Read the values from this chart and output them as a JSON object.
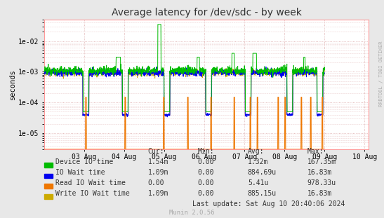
{
  "title": "Average latency for /dev/sdc - by week",
  "ylabel": "seconds",
  "right_label": "RRDTOOL / TOBI OETIKER",
  "bg_color": "#e8e8e8",
  "plot_bg_color": "#ffffff",
  "dotted_grid_color": "#ddaaaa",
  "frame_color": "#ff9999",
  "ylim_min": 3e-06,
  "ylim_max": 0.05,
  "xlim_min": 0,
  "xlim_max": 700000,
  "ytick_vals": [
    1e-05,
    0.0001,
    0.001,
    0.01
  ],
  "ytick_labels": [
    "1e-05",
    "1e-04",
    "1e-03",
    "1e-02"
  ],
  "xtick_positions": [
    86400,
    172800,
    259200,
    345600,
    432000,
    518400,
    604800,
    691200
  ],
  "xtick_labels": [
    "03 Aug",
    "04 Aug",
    "05 Aug",
    "06 Aug",
    "07 Aug",
    "08 Aug",
    "09 Aug",
    "10 Aug"
  ],
  "series_colors": {
    "device_io": "#00bb00",
    "io_wait": "#0000ee",
    "read_wait": "#ee7700",
    "write_wait": "#ccaa00"
  },
  "legend_items": [
    {
      "label": "Device IO time",
      "color": "#00bb00"
    },
    {
      "label": "IO Wait time",
      "color": "#0000ee"
    },
    {
      "label": "Read IO Wait time",
      "color": "#ee7700"
    },
    {
      "label": "Write IO Wait time",
      "color": "#ccaa00"
    }
  ],
  "stats_data": [
    [
      "1.54m",
      "0.00",
      "1.32m",
      "167.35m"
    ],
    [
      "1.09m",
      "0.00",
      "884.69u",
      "16.83m"
    ],
    [
      "0.00",
      "0.00",
      "5.41u",
      "978.33u"
    ],
    [
      "1.09m",
      "0.00",
      "885.15u",
      "16.83m"
    ]
  ],
  "last_update": "Last update: Sat Aug 10 20:40:06 2024",
  "munin_version": "Munin 2.0.56"
}
